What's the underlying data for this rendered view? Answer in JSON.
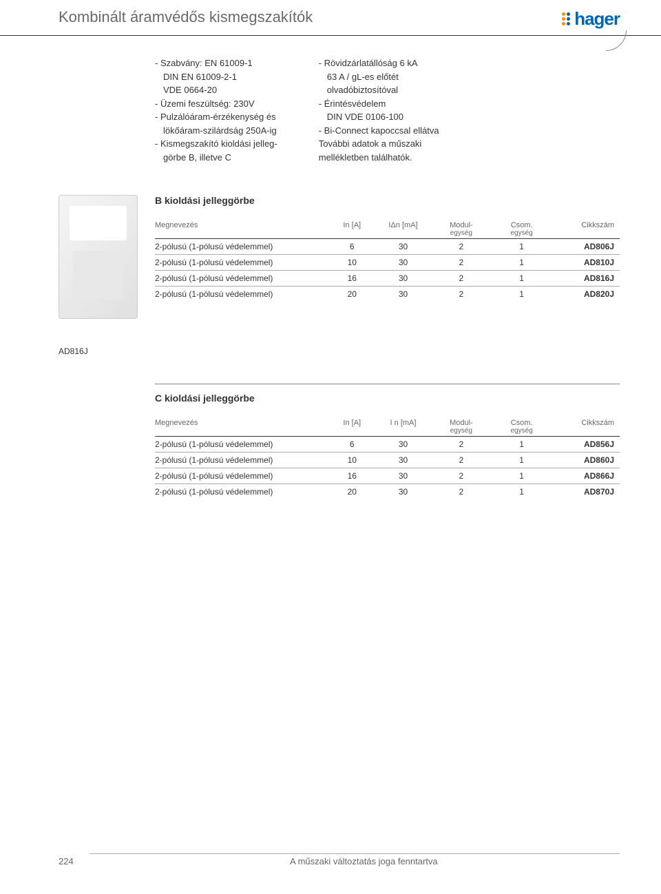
{
  "header": {
    "title": "Kombinált áramvédős kismegszakítók",
    "logo_text": "hager",
    "logo_colors": {
      "orange": "#f39200",
      "blue": "#0066b3"
    }
  },
  "specs": {
    "col1": [
      "- Szabvány: EN 61009-1",
      "  DIN EN 61009-2-1",
      "  VDE 0664-20",
      "- Üzemi feszültség: 230V",
      "- Pulzálóáram-érzékenység és",
      "  lökőáram-szilárdság 250A-ig",
      "- Kismegszakító kioldási jelleg-",
      "  görbe B, illetve C"
    ],
    "col2": [
      "- Rövidzárlatállóság 6 kA",
      "  63 A / gL-es előtét",
      "  olvadóbiztosítóval",
      "- Érintésvédelem",
      "  DIN VDE 0106-100",
      "- Bi-Connect kapoccsal ellátva",
      "",
      "További adatok a műszaki",
      "mellékletben találhatók."
    ]
  },
  "section_b": {
    "title": "B kioldási jelleggörbe",
    "product_label": "AD816J",
    "headers": {
      "name": "Megnevezés",
      "in": "In [A]",
      "idn": "IΔn [mA]",
      "mod": "Modul-",
      "mod_sub": "egység",
      "csom": "Csom.",
      "csom_sub": "egység",
      "cikk": "Cikkszám"
    },
    "rows": [
      {
        "name": "2-pólusú (1-pólusú védelemmel)",
        "in": "6",
        "idn": "30",
        "mod": "2",
        "csom": "1",
        "cikk": "AD806J"
      },
      {
        "name": "2-pólusú (1-pólusú védelemmel)",
        "in": "10",
        "idn": "30",
        "mod": "2",
        "csom": "1",
        "cikk": "AD810J"
      },
      {
        "name": "2-pólusú (1-pólusú védelemmel)",
        "in": "16",
        "idn": "30",
        "mod": "2",
        "csom": "1",
        "cikk": "AD816J"
      },
      {
        "name": "2-pólusú (1-pólusú védelemmel)",
        "in": "20",
        "idn": "30",
        "mod": "2",
        "csom": "1",
        "cikk": "AD820J"
      }
    ]
  },
  "section_c": {
    "title": "C kioldási jelleggörbe",
    "headers": {
      "name": "Megnevezés",
      "in": "In [A]",
      "idn": "I n [mA]",
      "mod": "Modul-",
      "mod_sub": "egység",
      "csom": "Csom.",
      "csom_sub": "egység",
      "cikk": "Cikkszám"
    },
    "rows": [
      {
        "name": "2-pólusú (1-pólusú védelemmel)",
        "in": "6",
        "idn": "30",
        "mod": "2",
        "csom": "1",
        "cikk": "AD856J"
      },
      {
        "name": "2-pólusú (1-pólusú védelemmel)",
        "in": "10",
        "idn": "30",
        "mod": "2",
        "csom": "1",
        "cikk": "AD860J"
      },
      {
        "name": "2-pólusú (1-pólusú védelemmel)",
        "in": "16",
        "idn": "30",
        "mod": "2",
        "csom": "1",
        "cikk": "AD866J"
      },
      {
        "name": "2-pólusú (1-pólusú védelemmel)",
        "in": "20",
        "idn": "30",
        "mod": "2",
        "csom": "1",
        "cikk": "AD870J"
      }
    ]
  },
  "footer": {
    "page_num": "224",
    "text": "A műszaki változtatás joga fenntartva"
  }
}
